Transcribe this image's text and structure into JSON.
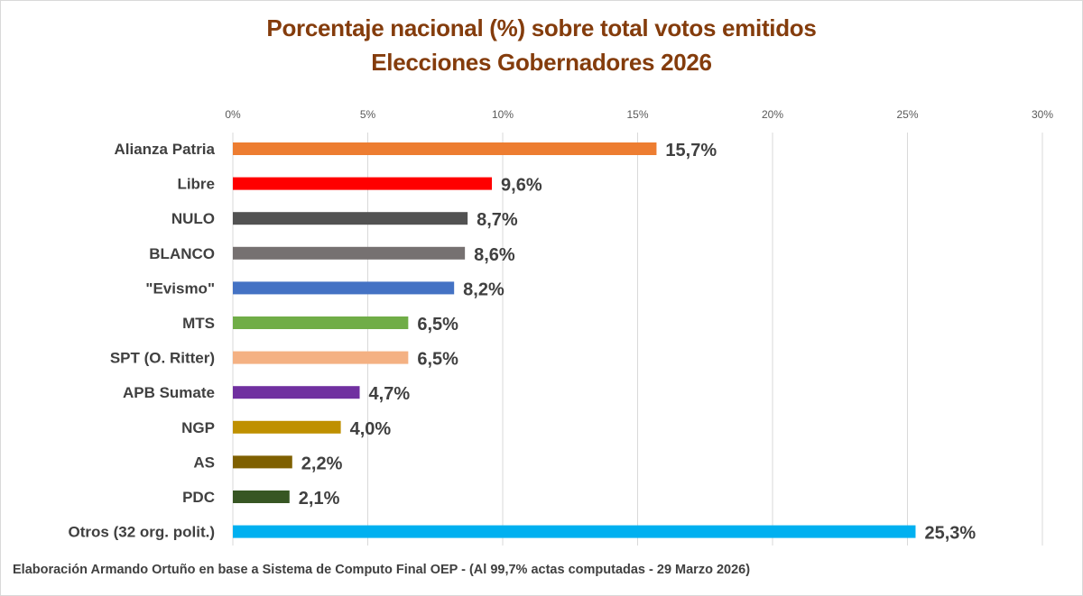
{
  "chart_data": {
    "type": "bar",
    "orientation": "horizontal",
    "title": "Porcentaje nacional (%) sobre total votos emitidos",
    "subtitle": "Elecciones Gobernadores 2026",
    "xlabel": "",
    "ylabel": "",
    "xlim": [
      0,
      30
    ],
    "x_ticks": [
      0,
      5,
      10,
      15,
      20,
      25,
      30
    ],
    "x_tick_labels": [
      "0%",
      "5%",
      "10%",
      "15%",
      "20%",
      "25%",
      "30%"
    ],
    "x_axis_position": "top",
    "grid": true,
    "legend": "none",
    "categories": [
      "Alianza Patria",
      "Libre",
      "NULO",
      "BLANCO",
      "\"Evismo\"",
      "MTS",
      "SPT (O. Ritter)",
      "APB Sumate",
      "NGP",
      "AS",
      "PDC",
      "Otros (32 org. polit.)"
    ],
    "values": [
      15.7,
      9.6,
      8.7,
      8.6,
      8.2,
      6.5,
      6.5,
      4.7,
      4.0,
      2.2,
      2.1,
      25.3
    ],
    "data_labels": [
      "15,7%",
      "9,6%",
      "8,7%",
      "8,6%",
      "8,2%",
      "6,5%",
      "6,5%",
      "4,7%",
      "4,0%",
      "2,2%",
      "2,1%",
      "25,3%"
    ],
    "colors": [
      "#ed7d31",
      "#ff0000",
      "#525252",
      "#767171",
      "#4472c4",
      "#70ad47",
      "#f4b183",
      "#7030a0",
      "#bf9000",
      "#7f6000",
      "#375623",
      "#00b0f0"
    ],
    "footnote": "Elaboración Armando Ortuño en base a Sistema de Computo Final OEP - (Al 99,7% actas computadas - 29 Marzo 2026)"
  },
  "colors": {
    "title": "#843c0c",
    "text": "#404040",
    "grid": "#d9d9d9"
  }
}
